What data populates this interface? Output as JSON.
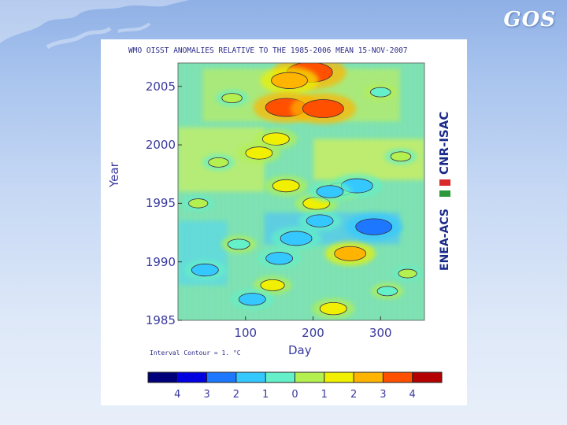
{
  "brand": "GOS",
  "logo": {
    "top_text": "CNR-ISAC",
    "bottom_text": "ENEA-ACS",
    "flag_colors": [
      "#d8282a",
      "#ffffff",
      "#2c9a3a"
    ]
  },
  "chart_data": {
    "type": "heatmap",
    "title": "WMO OISST ANOMALIES RELATIVE TO THE 1985-2006 MEAN 15-NOV-2007",
    "xlabel": "Day",
    "ylabel": "Year",
    "x_ticks": [
      "100",
      "200",
      "300"
    ],
    "x_tick_values": [
      100,
      200,
      300
    ],
    "xlim": [
      0,
      365
    ],
    "y_ticks": [
      "2005",
      "2000",
      "1995",
      "1990",
      "1985"
    ],
    "y_tick_values": [
      2005,
      2000,
      1995,
      1990,
      1985
    ],
    "ylim": [
      1985,
      2007
    ],
    "interval_contour": "Interval Contour = 1. °C",
    "colorbar": {
      "labels": [
        "4",
        "3",
        "2",
        "1",
        "0",
        "1",
        "2",
        "3",
        "4"
      ],
      "values": [
        -4,
        -3,
        -2,
        -1,
        0,
        1,
        2,
        3,
        4
      ],
      "colors": [
        "#00007a",
        "#0000e0",
        "#1e78ff",
        "#35c8ff",
        "#64f0c8",
        "#b4f050",
        "#f0f000",
        "#ffb400",
        "#ff5000",
        "#b40000"
      ]
    },
    "anomalies": [
      {
        "day": 195,
        "year": 2006.2,
        "value": 3.5
      },
      {
        "day": 165,
        "year": 2005.5,
        "value": 2.5
      },
      {
        "day": 160,
        "year": 2003.2,
        "value": 3.0
      },
      {
        "day": 215,
        "year": 2003.1,
        "value": 3.0
      },
      {
        "day": 145,
        "year": 2000.5,
        "value": 1.5
      },
      {
        "day": 120,
        "year": 1999.3,
        "value": 1.5
      },
      {
        "day": 160,
        "year": 1996.5,
        "value": 1.5
      },
      {
        "day": 240,
        "year": 1996.2,
        "value": 1.5
      },
      {
        "day": 205,
        "year": 1995.0,
        "value": 1.5
      },
      {
        "day": 255,
        "year": 1990.7,
        "value": 2.0
      },
      {
        "day": 230,
        "year": 1986.0,
        "value": 1.5
      },
      {
        "day": 140,
        "year": 1988.0,
        "value": 1.2
      },
      {
        "day": 265,
        "year": 1996.5,
        "value": -2.0
      },
      {
        "day": 225,
        "year": 1996.0,
        "value": -1.5
      },
      {
        "day": 290,
        "year": 1993.0,
        "value": -2.5
      },
      {
        "day": 175,
        "year": 1992.0,
        "value": -2.0
      },
      {
        "day": 150,
        "year": 1990.3,
        "value": -1.5
      },
      {
        "day": 40,
        "year": 1989.3,
        "value": -1.5
      },
      {
        "day": 210,
        "year": 1993.5,
        "value": -1.5
      },
      {
        "day": 110,
        "year": 1986.8,
        "value": -1.5
      },
      {
        "day": 60,
        "year": 1998.5,
        "value": 0.8
      },
      {
        "day": 30,
        "year": 1995.0,
        "value": 0.7
      },
      {
        "day": 330,
        "year": 1999.0,
        "value": 0.8
      },
      {
        "day": 340,
        "year": 1989.0,
        "value": 0.6
      },
      {
        "day": 80,
        "year": 2004.0,
        "value": 0.8
      },
      {
        "day": 300,
        "year": 2004.5,
        "value": -0.8
      },
      {
        "day": 90,
        "year": 1991.5,
        "value": -1.0
      },
      {
        "day": 310,
        "year": 1987.5,
        "value": -0.8
      }
    ]
  }
}
